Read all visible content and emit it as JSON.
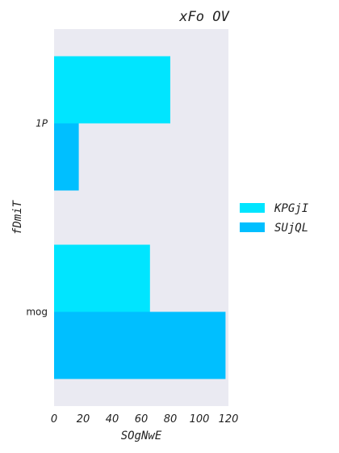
{
  "chart_data": {
    "type": "bar",
    "orientation": "horizontal",
    "title": "xFo OV",
    "xlabel": "SOgNwE",
    "ylabel": "fDmiT",
    "categories": [
      "1P",
      "mog"
    ],
    "series": [
      {
        "name": "KPGjI",
        "values": [
          80,
          66
        ],
        "color": "#00e5ff"
      },
      {
        "name": "SUjQL",
        "values": [
          17,
          118
        ],
        "color": "#00bfff"
      }
    ],
    "xlim": [
      0,
      120
    ],
    "xticks": [
      0,
      20,
      40,
      60,
      80,
      100,
      120
    ],
    "grid": false,
    "background": "#eaeaf2",
    "legend_position": "right"
  }
}
